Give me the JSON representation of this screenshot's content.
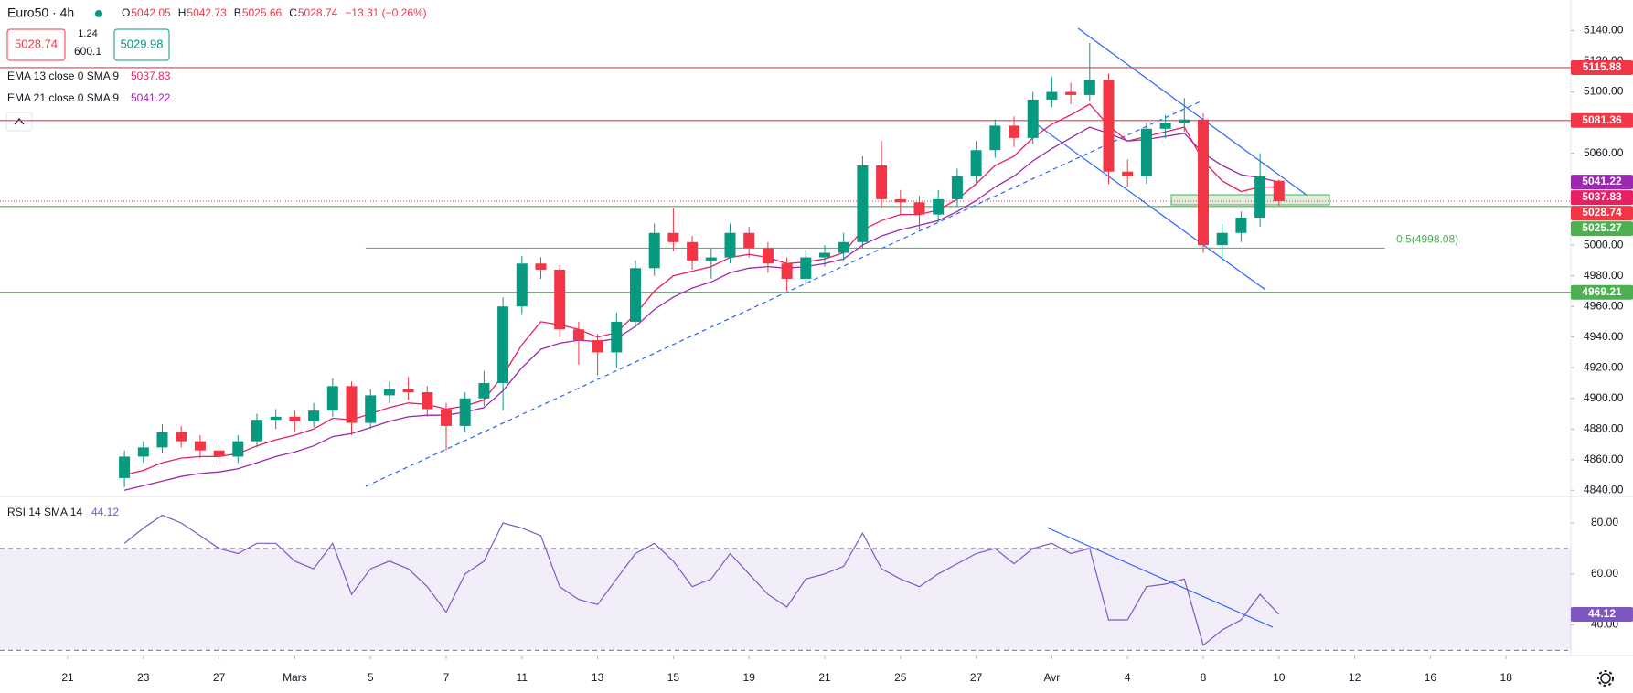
{
  "legend_panel": {
    "symbol": "Euro50 · 4h",
    "ohlc_labels": [
      "O",
      "H",
      "B",
      "C"
    ],
    "change": "−13.31 (−0.26%)",
    "sell": "5028.74",
    "spread": "1.24",
    "volume": "600.1",
    "buy": "5029.98"
  },
  "chart_data": [
    {
      "type": "candlestick",
      "up_color": "#089981",
      "down_color": "#f23645",
      "xticks": [
        {
          "value": 0,
          "label": "21"
        },
        {
          "value": 2,
          "label": "23"
        },
        {
          "value": 4,
          "label": "27"
        },
        {
          "value": 6,
          "label": "Mars"
        },
        {
          "value": 8,
          "label": "5"
        },
        {
          "value": 10,
          "label": "7"
        },
        {
          "value": 12,
          "label": "11"
        },
        {
          "value": 14,
          "label": "13"
        },
        {
          "value": 16,
          "label": "15"
        },
        {
          "value": 18,
          "label": "19"
        },
        {
          "value": 20,
          "label": "21"
        },
        {
          "value": 22,
          "label": "25"
        },
        {
          "value": 24,
          "label": "27"
        },
        {
          "value": 26,
          "label": "Avr"
        },
        {
          "value": 28,
          "label": "4"
        },
        {
          "value": 30,
          "label": "8"
        },
        {
          "value": 32,
          "label": "10"
        },
        {
          "value": 34,
          "label": "12"
        },
        {
          "value": 36,
          "label": "16"
        },
        {
          "value": 38,
          "label": "18"
        }
      ],
      "ylim": [
        4836,
        5160
      ],
      "yticks": [
        {
          "value": 4840,
          "label": "4840.00"
        },
        {
          "value": 4860,
          "label": "4860.00"
        },
        {
          "value": 4880,
          "label": "4880.00"
        },
        {
          "value": 4900,
          "label": "4900.00"
        },
        {
          "value": 4920,
          "label": "4920.00"
        },
        {
          "value": 4940,
          "label": "4940.00"
        },
        {
          "value": 4960,
          "label": "4960.00"
        },
        {
          "value": 4980,
          "label": "4980.00"
        },
        {
          "value": 5000,
          "label": "5000.00"
        },
        {
          "value": 5020,
          "label": "5020.00"
        },
        {
          "value": 5040,
          "label": "5040.00"
        },
        {
          "value": 5060,
          "label": "5060.00"
        },
        {
          "value": 5080,
          "label": "5080.00"
        },
        {
          "value": 5100,
          "label": "5100.00"
        },
        {
          "value": 5120,
          "label": "5120.00"
        },
        {
          "value": 5140,
          "label": "5140.00"
        }
      ],
      "x": [
        1.5,
        2,
        2.5,
        3,
        3.5,
        4,
        4.5,
        5,
        5.5,
        6,
        6.5,
        7,
        7.5,
        8,
        8.5,
        9,
        9.5,
        10,
        10.5,
        11,
        11.5,
        12,
        12.5,
        13,
        13.5,
        14,
        14.5,
        15,
        15.5,
        16,
        16.5,
        17,
        17.5,
        18,
        18.5,
        19,
        19.5,
        20,
        20.5,
        21,
        21.5,
        22,
        22.5,
        23,
        23.5,
        24,
        24.5,
        25,
        25.5,
        26,
        26.5,
        27,
        27.5,
        28,
        28.5,
        29,
        29.5,
        30,
        30.5,
        31,
        31.5,
        32
      ],
      "ohlc": [
        [
          4848,
          4866,
          4842,
          4862
        ],
        [
          4862,
          4872,
          4858,
          4868
        ],
        [
          4868,
          4883,
          4864,
          4878
        ],
        [
          4878,
          4882,
          4868,
          4872
        ],
        [
          4872,
          4876,
          4861,
          4866
        ],
        [
          4866,
          4870,
          4856,
          4862
        ],
        [
          4862,
          4876,
          4858,
          4872
        ],
        [
          4872,
          4890,
          4868,
          4886
        ],
        [
          4886,
          4893,
          4880,
          4888
        ],
        [
          4888,
          4892,
          4878,
          4885
        ],
        [
          4885,
          4897,
          4881,
          4892
        ],
        [
          4892,
          4913,
          4888,
          4908
        ],
        [
          4908,
          4911,
          4876,
          4884
        ],
        [
          4884,
          4906,
          4880,
          4902
        ],
        [
          4902,
          4911,
          4897,
          4906
        ],
        [
          4906,
          4914,
          4899,
          4904
        ],
        [
          4904,
          4908,
          4888,
          4893
        ],
        [
          4893,
          4897,
          4866,
          4882
        ],
        [
          4882,
          4904,
          4878,
          4900
        ],
        [
          4900,
          4918,
          4895,
          4910
        ],
        [
          4910,
          4966,
          4892,
          4960
        ],
        [
          4960,
          4993,
          4955,
          4988
        ],
        [
          4988,
          4992,
          4978,
          4984
        ],
        [
          4984,
          4987,
          4940,
          4945
        ],
        [
          4945,
          4950,
          4922,
          4938
        ],
        [
          4938,
          4942,
          4915,
          4930
        ],
        [
          4930,
          4956,
          4920,
          4950
        ],
        [
          4950,
          4990,
          4946,
          4985
        ],
        [
          4985,
          5014,
          4980,
          5008
        ],
        [
          5008,
          5024,
          4996,
          5002
        ],
        [
          5002,
          5006,
          4984,
          4990
        ],
        [
          4990,
          4998,
          4978,
          4992
        ],
        [
          4992,
          5014,
          4988,
          5008
        ],
        [
          5008,
          5012,
          4992,
          4998
        ],
        [
          4998,
          5002,
          4982,
          4988
        ],
        [
          4988,
          4992,
          4970,
          4978
        ],
        [
          4978,
          4997,
          4974,
          4992
        ],
        [
          4992,
          5000,
          4986,
          4995
        ],
        [
          4995,
          5008,
          4990,
          5002
        ],
        [
          5002,
          5058,
          4998,
          5052
        ],
        [
          5052,
          5068,
          5024,
          5030
        ],
        [
          5030,
          5036,
          5020,
          5028
        ],
        [
          5028,
          5032,
          5010,
          5020
        ],
        [
          5020,
          5036,
          5015,
          5030
        ],
        [
          5030,
          5050,
          5025,
          5045
        ],
        [
          5045,
          5068,
          5040,
          5062
        ],
        [
          5062,
          5082,
          5057,
          5078
        ],
        [
          5078,
          5084,
          5064,
          5070
        ],
        [
          5070,
          5100,
          5066,
          5095
        ],
        [
          5095,
          5110,
          5090,
          5100
        ],
        [
          5100,
          5106,
          5092,
          5098
        ],
        [
          5098,
          5132,
          5094,
          5108
        ],
        [
          5108,
          5112,
          5040,
          5048
        ],
        [
          5048,
          5056,
          5038,
          5045
        ],
        [
          5045,
          5080,
          5040,
          5076
        ],
        [
          5076,
          5085,
          5070,
          5080
        ],
        [
          5080,
          5096,
          5074,
          5082
        ],
        [
          5082,
          5086,
          4995,
          5000
        ],
        [
          5000,
          5014,
          4990,
          5008
        ],
        [
          5008,
          5022,
          5002,
          5018
        ],
        [
          5018,
          5060,
          5012,
          5045
        ],
        [
          5042.05,
          5042.73,
          5025.66,
          5028.74
        ]
      ],
      "series": [
        {
          "name": "EMA 13 close 0 SMA 9",
          "color": "#e91e63",
          "values": [
            4850,
            4853,
            4858,
            4861,
            4862,
            4862,
            4864,
            4869,
            4873,
            4876,
            4880,
            4887,
            4886,
            4890,
            4894,
            4897,
            4896,
            4893,
            4895,
            4899,
            4915,
            4935,
            4950,
            4948,
            4945,
            4940,
            4943,
            4955,
            4970,
            4980,
            4983,
            4986,
            4992,
            4994,
            4992,
            4988,
            4989,
            4991,
            4995,
            5010,
            5016,
            5020,
            5020,
            5023,
            5030,
            5040,
            5052,
            5058,
            5070,
            5079,
            5085,
            5092,
            5078,
            5068,
            5071,
            5074,
            5077,
            5055,
            5042,
            5035,
            5038,
            5037.83
          ]
        },
        {
          "name": "EMA 21 close 0 SMA 9",
          "color": "#9c27b0",
          "values": [
            4840,
            4843,
            4846,
            4849,
            4851,
            4852,
            4854,
            4858,
            4862,
            4865,
            4869,
            4875,
            4877,
            4881,
            4885,
            4888,
            4889,
            4889,
            4891,
            4894,
            4905,
            4920,
            4932,
            4936,
            4938,
            4937,
            4939,
            4947,
            4958,
            4966,
            4972,
            4976,
            4982,
            4985,
            4986,
            4985,
            4986,
            4988,
            4991,
            5000,
            5006,
            5010,
            5013,
            5016,
            5022,
            5029,
            5038,
            5045,
            5055,
            5063,
            5070,
            5077,
            5073,
            5068,
            5069,
            5071,
            5073,
            5060,
            5052,
            5046,
            5044,
            5041.22
          ]
        }
      ],
      "levels": [
        {
          "value": 5115.88,
          "color": "#f23645"
        },
        {
          "value": 5081.36,
          "color": "#f23645"
        },
        {
          "value": 5025.27,
          "color": "#4caf50"
        },
        {
          "value": 4969.21,
          "color": "#4caf50"
        }
      ],
      "fib": {
        "value": 4998.08,
        "label": "0.5(4998.08)",
        "color": "#4caf50"
      },
      "grid": false
    },
    {
      "type": "line",
      "name": "RSI 14 SMA 14",
      "color": "#7e57c2",
      "ylim": [
        28,
        90.4
      ],
      "yticks": [
        {
          "value": 40,
          "label": "40.00"
        },
        {
          "value": 60,
          "label": "60.00"
        },
        {
          "value": 80,
          "label": "80.00"
        }
      ],
      "band": [
        30,
        70
      ],
      "values": [
        72,
        78,
        83,
        80,
        75,
        70,
        68,
        72,
        72,
        65,
        62,
        72,
        52,
        62,
        65,
        62,
        55,
        45,
        60,
        65,
        80,
        78,
        75,
        55,
        50,
        48,
        58,
        68,
        72,
        65,
        55,
        58,
        68,
        60,
        52,
        47,
        58,
        60,
        63,
        76,
        62,
        58,
        55,
        60,
        64,
        68,
        70,
        64,
        70,
        72,
        68,
        70,
        42,
        42,
        55,
        56,
        58,
        32,
        38,
        42,
        52,
        44.12
      ]
    }
  ]
}
